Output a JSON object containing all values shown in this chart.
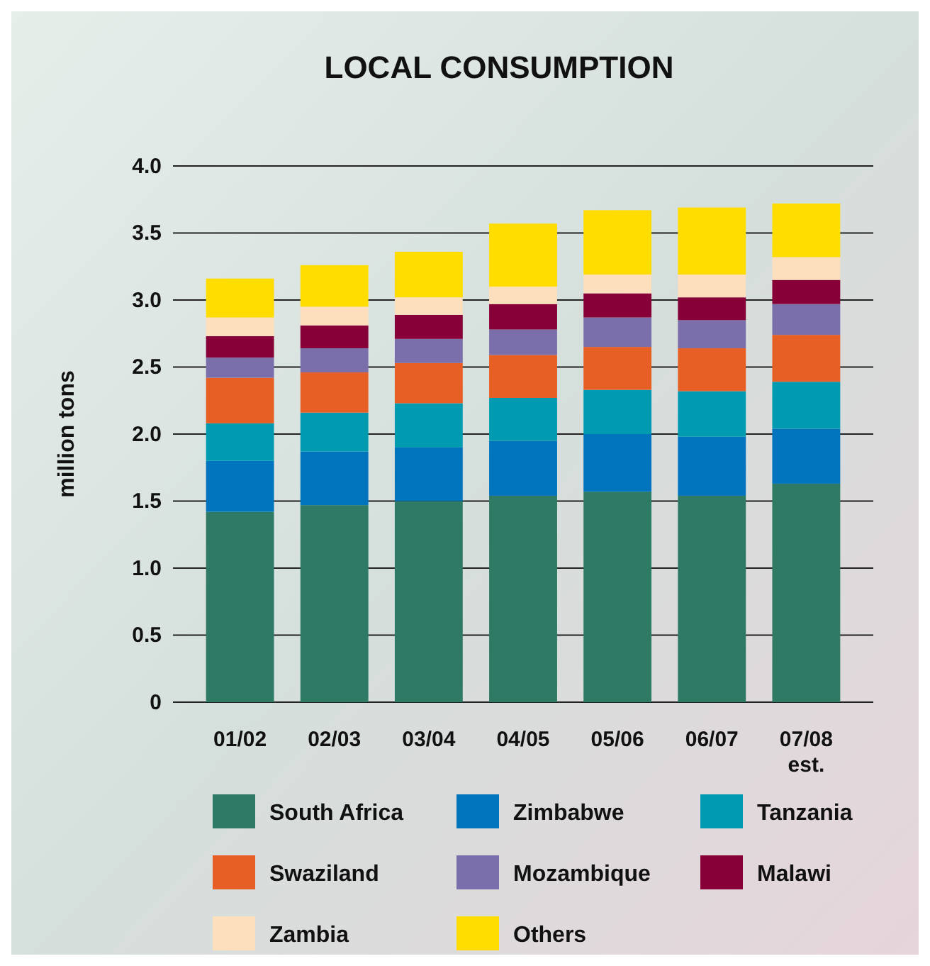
{
  "chart_data": {
    "type": "bar",
    "stacked": true,
    "title": "LOCAL CONSUMPTION",
    "ylabel": "million tons",
    "categories": [
      "01/02",
      "02/03",
      "03/04",
      "04/05",
      "05/06",
      "06/07",
      "07/08\nest."
    ],
    "series": [
      {
        "name": "South Africa",
        "color": "#2f7a65",
        "values": [
          1.42,
          1.47,
          1.5,
          1.54,
          1.57,
          1.54,
          1.63
        ]
      },
      {
        "name": "Zimbabwe",
        "color": "#0075bd",
        "values": [
          0.38,
          0.4,
          0.4,
          0.41,
          0.43,
          0.44,
          0.41
        ]
      },
      {
        "name": "Tanzania",
        "color": "#009bb1",
        "values": [
          0.28,
          0.29,
          0.33,
          0.32,
          0.33,
          0.34,
          0.35
        ]
      },
      {
        "name": "Swaziland",
        "color": "#e85f26",
        "values": [
          0.34,
          0.3,
          0.3,
          0.32,
          0.32,
          0.32,
          0.35
        ]
      },
      {
        "name": "Mozambique",
        "color": "#7b6fab",
        "values": [
          0.15,
          0.18,
          0.18,
          0.19,
          0.22,
          0.21,
          0.23
        ]
      },
      {
        "name": "Malawi",
        "color": "#870038",
        "values": [
          0.16,
          0.17,
          0.18,
          0.19,
          0.18,
          0.17,
          0.18
        ]
      },
      {
        "name": "Zambia",
        "color": "#fddfbd",
        "values": [
          0.14,
          0.14,
          0.13,
          0.13,
          0.14,
          0.17,
          0.17
        ]
      },
      {
        "name": "Others",
        "color": "#ffdd00",
        "values": [
          0.29,
          0.31,
          0.34,
          0.47,
          0.48,
          0.5,
          0.4
        ]
      }
    ],
    "ylim": [
      0,
      4
    ],
    "yticks": [
      {
        "value": 0,
        "label": "0"
      },
      {
        "value": 0.5,
        "label": "0.5"
      },
      {
        "value": 1,
        "label": "1.0"
      },
      {
        "value": 1.5,
        "label": "1.5"
      },
      {
        "value": 2,
        "label": "2.0"
      },
      {
        "value": 2.5,
        "label": "2.5"
      },
      {
        "value": 3,
        "label": "3.0"
      },
      {
        "value": 3.5,
        "label": "3.5"
      },
      {
        "value": 4,
        "label": "4.0"
      }
    ],
    "grid": "y",
    "legend": "bottom"
  }
}
